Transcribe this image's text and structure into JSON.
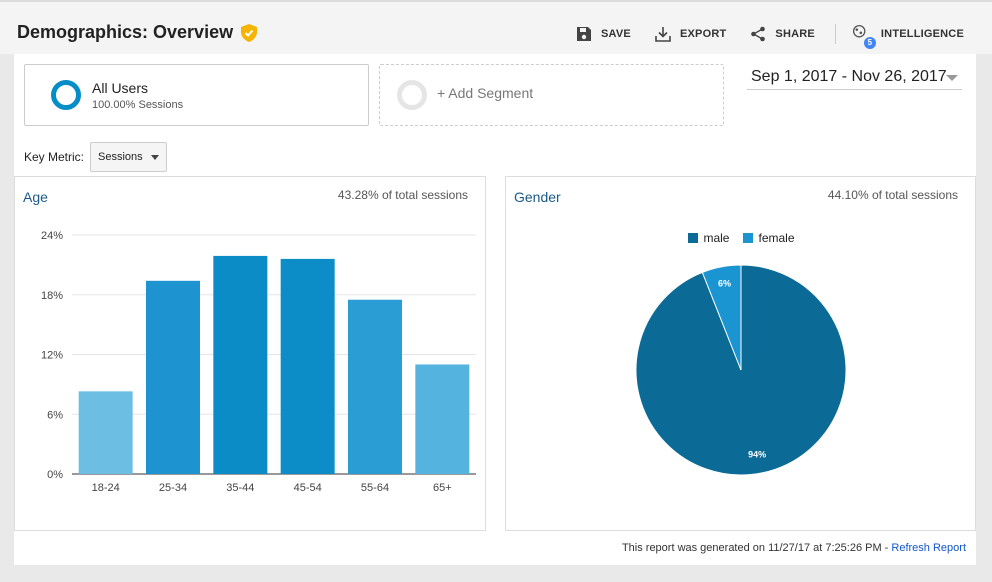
{
  "header": {
    "title": "Demographics: Overview",
    "actions": {
      "save": "SAVE",
      "export": "EXPORT",
      "share": "SHARE",
      "intelligence": "INTELLIGENCE",
      "intelligence_badge": "5"
    }
  },
  "segments": {
    "active": {
      "name": "All Users",
      "detail": "100.00% Sessions"
    },
    "add_label": "+ Add Segment"
  },
  "date_range": "Sep 1, 2017 - Nov 26, 2017",
  "key_metric": {
    "label": "Key Metric:",
    "selected": "Sessions"
  },
  "age_panel": {
    "title": "Age",
    "share": "43.28% of total sessions"
  },
  "gender_panel": {
    "title": "Gender",
    "share": "44.10% of total sessions"
  },
  "footer": {
    "text": "This report was generated on 11/27/17 at 7:25:26 PM - ",
    "link": "Refresh Report"
  },
  "colors": {
    "accent": "#058dc7",
    "brand_badge": "#f4b400",
    "male": "#0b6b96",
    "female": "#1a95d2"
  },
  "chart_data": [
    {
      "type": "bar",
      "title": "Age",
      "categories": [
        "18-24",
        "25-34",
        "35-44",
        "45-54",
        "55-64",
        "65+"
      ],
      "values": [
        8.3,
        19.4,
        21.9,
        21.6,
        17.5,
        11.0
      ],
      "bar_colors": [
        "#6cbfe3",
        "#1d93cf",
        "#0b8cc7",
        "#0d8dc8",
        "#2a9dd4",
        "#55b3df"
      ],
      "yticks": [
        "0%",
        "6%",
        "12%",
        "18%",
        "24%"
      ],
      "ylim": [
        0,
        24
      ],
      "grid": true
    },
    {
      "type": "pie",
      "title": "Gender",
      "labels": [
        "male",
        "female"
      ],
      "values": [
        94,
        6
      ],
      "value_labels": [
        "94%",
        "6%"
      ],
      "colors": [
        "#0b6b96",
        "#1a95d2"
      ],
      "legend_placement": "top"
    }
  ]
}
